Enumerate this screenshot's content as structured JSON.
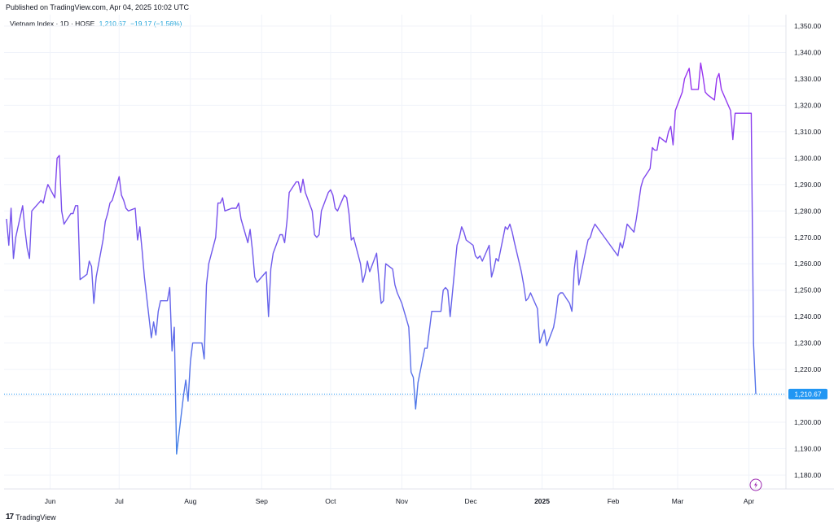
{
  "header": {
    "published": "Published on TradingView.com, Apr 04, 2025 10:02 UTC"
  },
  "legend": {
    "symbol": "Vietnam Index · 1D · HOSE",
    "price": "1,210.67",
    "change": "−19.17 (−1.56%)"
  },
  "footer": {
    "brand": "TradingView",
    "logo": "tv-logo-icon"
  },
  "colors": {
    "line_start": "#3d8ae6",
    "line_end": "#9b30f0",
    "last_badge": "#2196f3",
    "grid": "#f0f3fa"
  },
  "icons": {
    "flash": "lightning-icon"
  },
  "chart_data": {
    "type": "line",
    "title": "",
    "xlabel": "",
    "ylabel": "",
    "ylim": [
      1175,
      1355
    ],
    "y_ticks": [
      "1,180.00",
      "1,190.00",
      "1,200.00",
      "1,210.00",
      "1,220.00",
      "1,230.00",
      "1,240.00",
      "1,250.00",
      "1,260.00",
      "1,270.00",
      "1,280.00",
      "1,290.00",
      "1,300.00",
      "1,310.00",
      "1,320.00",
      "1,330.00",
      "1,340.00",
      "1,350.00"
    ],
    "y_tick_values": [
      1180,
      1190,
      1200,
      1210,
      1220,
      1230,
      1240,
      1250,
      1260,
      1270,
      1280,
      1290,
      1300,
      1310,
      1320,
      1330,
      1340,
      1350
    ],
    "x_ticks": [
      {
        "label": "Jun",
        "date": "2024-06-01"
      },
      {
        "label": "Jul",
        "date": "2024-07-01"
      },
      {
        "label": "Aug",
        "date": "2024-08-01"
      },
      {
        "label": "Sep",
        "date": "2024-09-01"
      },
      {
        "label": "Oct",
        "date": "2024-10-01"
      },
      {
        "label": "Nov",
        "date": "2024-11-01"
      },
      {
        "label": "Dec",
        "date": "2024-12-01"
      },
      {
        "label": "2025",
        "date": "2025-01-01",
        "bold": true
      },
      {
        "label": "Feb",
        "date": "2025-02-01"
      },
      {
        "label": "Mar",
        "date": "2025-03-01"
      },
      {
        "label": "Apr",
        "date": "2025-04-01"
      }
    ],
    "last_value_label": "1,210.67",
    "last_value": 1210.67,
    "grid": true,
    "series": [
      {
        "values": [
          {
            "x": "2024-05-13",
            "y": 1277
          },
          {
            "x": "2024-05-14",
            "y": 1267
          },
          {
            "x": "2024-05-15",
            "y": 1281
          },
          {
            "x": "2024-05-16",
            "y": 1262
          },
          {
            "x": "2024-05-17",
            "y": 1270
          },
          {
            "x": "2024-05-20",
            "y": 1282
          },
          {
            "x": "2024-05-21",
            "y": 1273
          },
          {
            "x": "2024-05-22",
            "y": 1266
          },
          {
            "x": "2024-05-23",
            "y": 1262
          },
          {
            "x": "2024-05-24",
            "y": 1280
          },
          {
            "x": "2024-05-27",
            "y": 1283
          },
          {
            "x": "2024-05-28",
            "y": 1284
          },
          {
            "x": "2024-05-29",
            "y": 1283
          },
          {
            "x": "2024-05-30",
            "y": 1287
          },
          {
            "x": "2024-05-31",
            "y": 1290
          },
          {
            "x": "2024-06-03",
            "y": 1285
          },
          {
            "x": "2024-06-04",
            "y": 1300
          },
          {
            "x": "2024-06-05",
            "y": 1301
          },
          {
            "x": "2024-06-06",
            "y": 1280
          },
          {
            "x": "2024-06-07",
            "y": 1275
          },
          {
            "x": "2024-06-10",
            "y": 1279
          },
          {
            "x": "2024-06-11",
            "y": 1279
          },
          {
            "x": "2024-06-12",
            "y": 1282
          },
          {
            "x": "2024-06-13",
            "y": 1282
          },
          {
            "x": "2024-06-14",
            "y": 1254
          },
          {
            "x": "2024-06-17",
            "y": 1256
          },
          {
            "x": "2024-06-18",
            "y": 1261
          },
          {
            "x": "2024-06-19",
            "y": 1259
          },
          {
            "x": "2024-06-20",
            "y": 1245
          },
          {
            "x": "2024-06-21",
            "y": 1255
          },
          {
            "x": "2024-06-24",
            "y": 1269
          },
          {
            "x": "2024-06-25",
            "y": 1276
          },
          {
            "x": "2024-06-26",
            "y": 1279
          },
          {
            "x": "2024-06-27",
            "y": 1283
          },
          {
            "x": "2024-06-28",
            "y": 1284
          },
          {
            "x": "2024-07-01",
            "y": 1293
          },
          {
            "x": "2024-07-02",
            "y": 1286
          },
          {
            "x": "2024-07-03",
            "y": 1284
          },
          {
            "x": "2024-07-04",
            "y": 1281
          },
          {
            "x": "2024-07-05",
            "y": 1280
          },
          {
            "x": "2024-07-08",
            "y": 1281
          },
          {
            "x": "2024-07-09",
            "y": 1269
          },
          {
            "x": "2024-07-10",
            "y": 1274
          },
          {
            "x": "2024-07-11",
            "y": 1265
          },
          {
            "x": "2024-07-12",
            "y": 1255
          },
          {
            "x": "2024-07-15",
            "y": 1232
          },
          {
            "x": "2024-07-16",
            "y": 1238
          },
          {
            "x": "2024-07-17",
            "y": 1233
          },
          {
            "x": "2024-07-18",
            "y": 1242
          },
          {
            "x": "2024-07-19",
            "y": 1246
          },
          {
            "x": "2024-07-22",
            "y": 1246
          },
          {
            "x": "2024-07-23",
            "y": 1251
          },
          {
            "x": "2024-07-24",
            "y": 1227
          },
          {
            "x": "2024-07-25",
            "y": 1236
          },
          {
            "x": "2024-07-26",
            "y": 1188
          },
          {
            "x": "2024-07-29",
            "y": 1210
          },
          {
            "x": "2024-07-30",
            "y": 1216
          },
          {
            "x": "2024-07-31",
            "y": 1208
          },
          {
            "x": "2024-08-01",
            "y": 1223
          },
          {
            "x": "2024-08-02",
            "y": 1230
          },
          {
            "x": "2024-08-05",
            "y": 1230
          },
          {
            "x": "2024-08-06",
            "y": 1230
          },
          {
            "x": "2024-08-07",
            "y": 1224
          },
          {
            "x": "2024-08-08",
            "y": 1252
          },
          {
            "x": "2024-08-09",
            "y": 1260
          },
          {
            "x": "2024-08-12",
            "y": 1270
          },
          {
            "x": "2024-08-13",
            "y": 1283
          },
          {
            "x": "2024-08-14",
            "y": 1283
          },
          {
            "x": "2024-08-15",
            "y": 1285
          },
          {
            "x": "2024-08-16",
            "y": 1280
          },
          {
            "x": "2024-08-19",
            "y": 1281
          },
          {
            "x": "2024-08-20",
            "y": 1281
          },
          {
            "x": "2024-08-21",
            "y": 1281
          },
          {
            "x": "2024-08-22",
            "y": 1283
          },
          {
            "x": "2024-08-23",
            "y": 1277
          },
          {
            "x": "2024-08-26",
            "y": 1268
          },
          {
            "x": "2024-08-27",
            "y": 1273
          },
          {
            "x": "2024-08-28",
            "y": 1265
          },
          {
            "x": "2024-08-29",
            "y": 1255
          },
          {
            "x": "2024-08-30",
            "y": 1253
          },
          {
            "x": "2024-09-03",
            "y": 1257
          },
          {
            "x": "2024-09-04",
            "y": 1240
          },
          {
            "x": "2024-09-05",
            "y": 1258
          },
          {
            "x": "2024-09-06",
            "y": 1264
          },
          {
            "x": "2024-09-09",
            "y": 1271
          },
          {
            "x": "2024-09-10",
            "y": 1271
          },
          {
            "x": "2024-09-11",
            "y": 1268
          },
          {
            "x": "2024-09-12",
            "y": 1276
          },
          {
            "x": "2024-09-13",
            "y": 1287
          },
          {
            "x": "2024-09-16",
            "y": 1291
          },
          {
            "x": "2024-09-17",
            "y": 1291
          },
          {
            "x": "2024-09-18",
            "y": 1287
          },
          {
            "x": "2024-09-19",
            "y": 1292
          },
          {
            "x": "2024-09-20",
            "y": 1287
          },
          {
            "x": "2024-09-23",
            "y": 1280
          },
          {
            "x": "2024-09-24",
            "y": 1271
          },
          {
            "x": "2024-09-25",
            "y": 1270
          },
          {
            "x": "2024-09-26",
            "y": 1271
          },
          {
            "x": "2024-09-27",
            "y": 1280
          },
          {
            "x": "2024-09-30",
            "y": 1287
          },
          {
            "x": "2024-10-01",
            "y": 1288
          },
          {
            "x": "2024-10-02",
            "y": 1286
          },
          {
            "x": "2024-10-03",
            "y": 1281
          },
          {
            "x": "2024-10-04",
            "y": 1280
          },
          {
            "x": "2024-10-07",
            "y": 1286
          },
          {
            "x": "2024-10-08",
            "y": 1285
          },
          {
            "x": "2024-10-09",
            "y": 1279
          },
          {
            "x": "2024-10-10",
            "y": 1269
          },
          {
            "x": "2024-10-11",
            "y": 1270
          },
          {
            "x": "2024-10-14",
            "y": 1260
          },
          {
            "x": "2024-10-15",
            "y": 1253
          },
          {
            "x": "2024-10-16",
            "y": 1256
          },
          {
            "x": "2024-10-17",
            "y": 1261
          },
          {
            "x": "2024-10-18",
            "y": 1257
          },
          {
            "x": "2024-10-21",
            "y": 1264
          },
          {
            "x": "2024-10-22",
            "y": 1254
          },
          {
            "x": "2024-10-23",
            "y": 1245
          },
          {
            "x": "2024-10-24",
            "y": 1246
          },
          {
            "x": "2024-10-25",
            "y": 1260
          },
          {
            "x": "2024-10-28",
            "y": 1258
          },
          {
            "x": "2024-10-29",
            "y": 1252
          },
          {
            "x": "2024-10-30",
            "y": 1249
          },
          {
            "x": "2024-10-31",
            "y": 1247
          },
          {
            "x": "2024-11-01",
            "y": 1245
          },
          {
            "x": "2024-11-04",
            "y": 1236
          },
          {
            "x": "2024-11-05",
            "y": 1219
          },
          {
            "x": "2024-11-06",
            "y": 1217
          },
          {
            "x": "2024-11-07",
            "y": 1205
          },
          {
            "x": "2024-11-08",
            "y": 1215
          },
          {
            "x": "2024-11-11",
            "y": 1228
          },
          {
            "x": "2024-11-12",
            "y": 1228
          },
          {
            "x": "2024-11-13",
            "y": 1235
          },
          {
            "x": "2024-11-14",
            "y": 1242
          },
          {
            "x": "2024-11-15",
            "y": 1242
          },
          {
            "x": "2024-11-18",
            "y": 1242
          },
          {
            "x": "2024-11-19",
            "y": 1250
          },
          {
            "x": "2024-11-20",
            "y": 1251
          },
          {
            "x": "2024-11-21",
            "y": 1250
          },
          {
            "x": "2024-11-22",
            "y": 1240
          },
          {
            "x": "2024-11-25",
            "y": 1267
          },
          {
            "x": "2024-11-26",
            "y": 1270
          },
          {
            "x": "2024-11-27",
            "y": 1274
          },
          {
            "x": "2024-11-28",
            "y": 1272
          },
          {
            "x": "2024-11-29",
            "y": 1269
          },
          {
            "x": "2024-12-02",
            "y": 1267
          },
          {
            "x": "2024-12-03",
            "y": 1263
          },
          {
            "x": "2024-12-04",
            "y": 1262
          },
          {
            "x": "2024-12-05",
            "y": 1263
          },
          {
            "x": "2024-12-06",
            "y": 1261
          },
          {
            "x": "2024-12-09",
            "y": 1267
          },
          {
            "x": "2024-12-10",
            "y": 1255
          },
          {
            "x": "2024-12-11",
            "y": 1258
          },
          {
            "x": "2024-12-12",
            "y": 1262
          },
          {
            "x": "2024-12-13",
            "y": 1261
          },
          {
            "x": "2024-12-16",
            "y": 1274
          },
          {
            "x": "2024-12-17",
            "y": 1273
          },
          {
            "x": "2024-12-18",
            "y": 1275
          },
          {
            "x": "2024-12-19",
            "y": 1272
          },
          {
            "x": "2024-12-20",
            "y": 1268
          },
          {
            "x": "2024-12-23",
            "y": 1257
          },
          {
            "x": "2024-12-24",
            "y": 1252
          },
          {
            "x": "2024-12-25",
            "y": 1246
          },
          {
            "x": "2024-12-26",
            "y": 1247
          },
          {
            "x": "2024-12-27",
            "y": 1249
          },
          {
            "x": "2024-12-30",
            "y": 1243
          },
          {
            "x": "2024-12-31",
            "y": 1230
          },
          {
            "x": "2025-01-02",
            "y": 1235
          },
          {
            "x": "2025-01-03",
            "y": 1229
          },
          {
            "x": "2025-01-06",
            "y": 1236
          },
          {
            "x": "2025-01-07",
            "y": 1241
          },
          {
            "x": "2025-01-08",
            "y": 1248
          },
          {
            "x": "2025-01-09",
            "y": 1249
          },
          {
            "x": "2025-01-10",
            "y": 1249
          },
          {
            "x": "2025-01-13",
            "y": 1245
          },
          {
            "x": "2025-01-14",
            "y": 1242
          },
          {
            "x": "2025-01-15",
            "y": 1258
          },
          {
            "x": "2025-01-16",
            "y": 1265
          },
          {
            "x": "2025-01-17",
            "y": 1252
          },
          {
            "x": "2025-01-20",
            "y": 1265
          },
          {
            "x": "2025-01-21",
            "y": 1269
          },
          {
            "x": "2025-01-22",
            "y": 1270
          },
          {
            "x": "2025-01-23",
            "y": 1273
          },
          {
            "x": "2025-01-24",
            "y": 1275
          },
          {
            "x": "2025-02-03",
            "y": 1263
          },
          {
            "x": "2025-02-04",
            "y": 1268
          },
          {
            "x": "2025-02-05",
            "y": 1266
          },
          {
            "x": "2025-02-06",
            "y": 1270
          },
          {
            "x": "2025-02-07",
            "y": 1275
          },
          {
            "x": "2025-02-10",
            "y": 1272
          },
          {
            "x": "2025-02-11",
            "y": 1277
          },
          {
            "x": "2025-02-12",
            "y": 1283
          },
          {
            "x": "2025-02-13",
            "y": 1289
          },
          {
            "x": "2025-02-14",
            "y": 1292
          },
          {
            "x": "2025-02-17",
            "y": 1296
          },
          {
            "x": "2025-02-18",
            "y": 1304
          },
          {
            "x": "2025-02-19",
            "y": 1303
          },
          {
            "x": "2025-02-20",
            "y": 1303
          },
          {
            "x": "2025-02-21",
            "y": 1308
          },
          {
            "x": "2025-02-24",
            "y": 1306
          },
          {
            "x": "2025-02-25",
            "y": 1310
          },
          {
            "x": "2025-02-26",
            "y": 1312
          },
          {
            "x": "2025-02-27",
            "y": 1305
          },
          {
            "x": "2025-02-28",
            "y": 1318
          },
          {
            "x": "2025-03-03",
            "y": 1325
          },
          {
            "x": "2025-03-04",
            "y": 1330
          },
          {
            "x": "2025-03-05",
            "y": 1332
          },
          {
            "x": "2025-03-06",
            "y": 1334
          },
          {
            "x": "2025-03-07",
            "y": 1326
          },
          {
            "x": "2025-03-10",
            "y": 1326
          },
          {
            "x": "2025-03-11",
            "y": 1336
          },
          {
            "x": "2025-03-12",
            "y": 1331
          },
          {
            "x": "2025-03-13",
            "y": 1325
          },
          {
            "x": "2025-03-14",
            "y": 1324
          },
          {
            "x": "2025-03-17",
            "y": 1322
          },
          {
            "x": "2025-03-18",
            "y": 1330
          },
          {
            "x": "2025-03-19",
            "y": 1332
          },
          {
            "x": "2025-03-20",
            "y": 1326
          },
          {
            "x": "2025-03-21",
            "y": 1324
          },
          {
            "x": "2025-03-24",
            "y": 1318
          },
          {
            "x": "2025-03-25",
            "y": 1307
          },
          {
            "x": "2025-03-26",
            "y": 1317
          },
          {
            "x": "2025-03-27",
            "y": 1317
          },
          {
            "x": "2025-03-28",
            "y": 1317
          },
          {
            "x": "2025-03-31",
            "y": 1317
          },
          {
            "x": "2025-04-01",
            "y": 1317
          },
          {
            "x": "2025-04-02",
            "y": 1317
          },
          {
            "x": "2025-04-03",
            "y": 1229.84
          },
          {
            "x": "2025-04-04",
            "y": 1210.67
          }
        ]
      }
    ]
  }
}
